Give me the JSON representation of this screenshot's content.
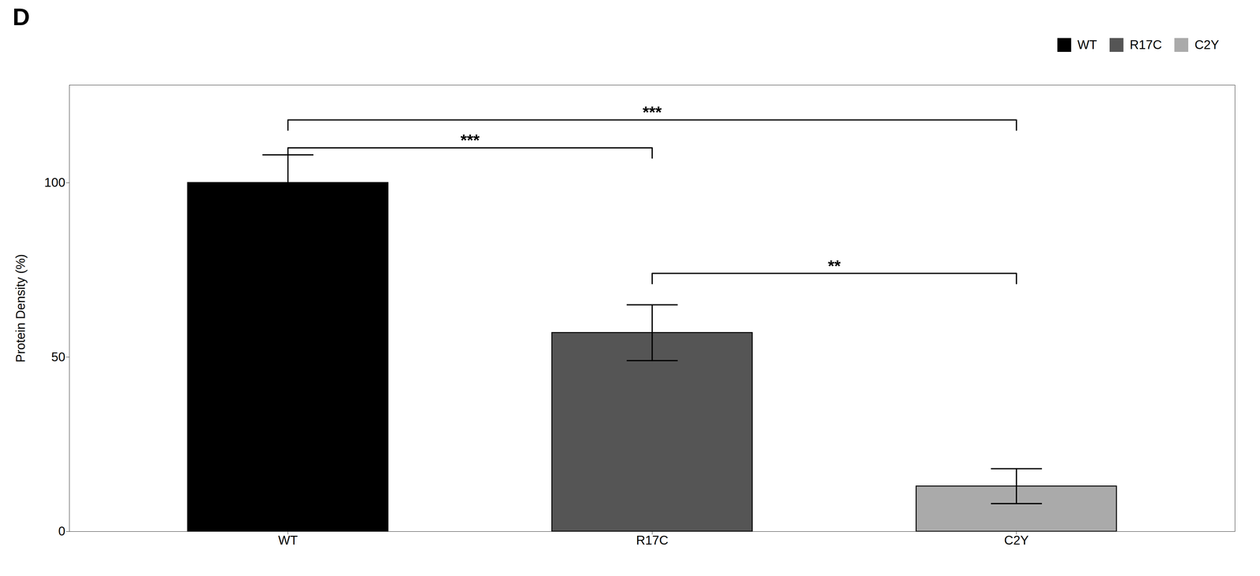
{
  "chart_data": {
    "type": "bar",
    "title": "D",
    "categories": [
      "WT",
      "R17C",
      "C2Y"
    ],
    "values": [
      100,
      57,
      13
    ],
    "errors": [
      8,
      8,
      5
    ],
    "colors": [
      "#000000",
      "#555555",
      "#aaaaaa"
    ],
    "ylabel": "Protein Density (%)",
    "ylim": [
      0,
      128
    ],
    "yticks": [
      0,
      50,
      100
    ],
    "legend": "upper right",
    "annotations": [
      {
        "x1": "WT",
        "x2": "R17C",
        "y": 110,
        "label": "***"
      },
      {
        "x1": "WT",
        "x2": "C2Y",
        "y": 118,
        "label": "***"
      },
      {
        "x1": "R17C",
        "x2": "C2Y",
        "y": 74,
        "label": "**"
      }
    ]
  }
}
